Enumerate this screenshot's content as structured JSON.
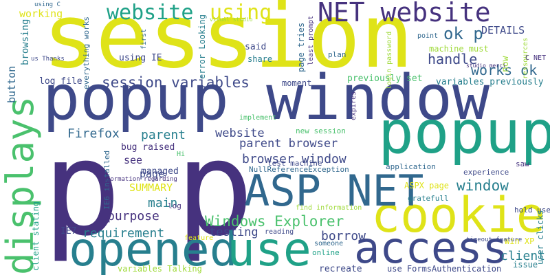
{
  "palette": {
    "dark_purple": "#46327e",
    "indigo": "#3e4989",
    "slate_blue": "#31688e",
    "teal_blue": "#277f8e",
    "teal": "#1fa187",
    "green": "#4ac16d",
    "lime": "#9fda3a",
    "yellow": "#dfe318",
    "bright_yellow": "#e6e419"
  },
  "words": [
    {
      "key": "session",
      "text": "session",
      "color": "#dfe318"
    },
    {
      "key": "p1",
      "text": "p",
      "color": "#46327e"
    },
    {
      "key": "p2",
      "text": "p",
      "color": "#46327e"
    },
    {
      "key": "popup-window",
      "text": "popup window",
      "color": "#3e4989"
    },
    {
      "key": "popup",
      "text": "popup",
      "color": "#1fa187"
    },
    {
      "key": "cookie",
      "text": "cookie",
      "color": "#dfe318"
    },
    {
      "key": "asp-net",
      "text": "ASP NET",
      "color": "#31688e"
    },
    {
      "key": "opened",
      "text": "opened",
      "color": "#277f8e"
    },
    {
      "key": "use",
      "text": "use",
      "color": "#1fa187"
    },
    {
      "key": "access",
      "text": "access",
      "color": "#3e4989"
    },
    {
      "key": "displays",
      "text": "displays",
      "color": "#4ac16d"
    },
    {
      "key": "net-website",
      "text": "NET website",
      "color": "#46327e"
    },
    {
      "key": "website-top",
      "text": "website",
      "color": "#1fa187"
    },
    {
      "key": "using-top",
      "text": "using",
      "color": "#dfe318"
    },
    {
      "key": "ok-p",
      "text": "ok p",
      "color": "#31688e"
    },
    {
      "key": "details",
      "text": "DETAILS",
      "color": "#3e4989"
    },
    {
      "key": "works-ok",
      "text": "works ok",
      "color": "#31688e"
    },
    {
      "key": "handle",
      "text": "handle",
      "color": "#3e4989"
    },
    {
      "key": "session-variables",
      "text": "session variables",
      "color": "#3e4989"
    },
    {
      "key": "firefox",
      "text": "Firefox",
      "color": "#31688e"
    },
    {
      "key": "parent",
      "text": "parent",
      "color": "#277f8e"
    },
    {
      "key": "website-mid",
      "text": "website",
      "color": "#3e4989"
    },
    {
      "key": "parent-browser",
      "text": "parent browser",
      "color": "#3e4989"
    },
    {
      "key": "browser-window",
      "text": "browser window",
      "color": "#3e4989"
    },
    {
      "key": "windows-explorer",
      "text": "Windows Explorer",
      "color": "#4ac16d"
    },
    {
      "key": "window",
      "text": "window",
      "color": "#277f8e"
    },
    {
      "key": "main",
      "text": "main",
      "color": "#277f8e"
    },
    {
      "key": "purpose",
      "text": "purpose",
      "color": "#46327e"
    },
    {
      "key": "requirement",
      "text": "requirement",
      "color": "#277f8e"
    },
    {
      "key": "testing",
      "text": "testing",
      "color": "#3e4989"
    },
    {
      "key": "borrow",
      "text": "borrow",
      "color": "#3e4989"
    },
    {
      "key": "client",
      "text": "client",
      "color": "#277f8e"
    },
    {
      "key": "summary",
      "text": "SUMMARY",
      "color": "#dfe318"
    },
    {
      "key": "page-mid",
      "text": "page",
      "color": "#3e4989"
    },
    {
      "key": "managed",
      "text": "managed",
      "color": "#3e4989"
    },
    {
      "key": "see",
      "text": "see",
      "color": "#46327e"
    },
    {
      "key": "bug-raised",
      "text": "bug raised",
      "color": "#46327e"
    },
    {
      "key": "working",
      "text": "working",
      "color": "#dfe318"
    },
    {
      "key": "button",
      "text": "button",
      "color": "#31688e"
    },
    {
      "key": "browsing",
      "text": "browsing",
      "color": "#277f8e"
    },
    {
      "key": "log-file",
      "text": "log file",
      "color": "#3e4989"
    },
    {
      "key": "using-ie",
      "text": "using IE",
      "color": "#3e4989"
    },
    {
      "key": "said",
      "text": "said",
      "color": "#3e4989"
    },
    {
      "key": "share",
      "text": "share",
      "color": "#277f8e"
    },
    {
      "key": "moment",
      "text": "moment",
      "color": "#3e4989"
    },
    {
      "key": "previously-set",
      "text": "previously set",
      "color": "#4ac16d"
    },
    {
      "key": "variables-previously",
      "text": "variables previously",
      "color": "#277f8e"
    },
    {
      "key": "machine-must",
      "text": "machine must",
      "color": "#9fda3a"
    },
    {
      "key": "now",
      "text": "now",
      "color": "#9fda3a"
    },
    {
      "key": "plan",
      "text": "plan",
      "color": "#31688e"
    },
    {
      "key": "implement",
      "text": "implement",
      "color": "#4ac16d"
    },
    {
      "key": "new-session",
      "text": "new session",
      "color": "#4ac16d"
    },
    {
      "key": "test-machine",
      "text": "test machine",
      "color": "#3e4989"
    },
    {
      "key": "null-ref",
      "text": "NullReferenceException",
      "color": "#31688e"
    },
    {
      "key": "application",
      "text": "application",
      "color": "#31688e"
    },
    {
      "key": "experience",
      "text": "experience",
      "color": "#3e4989"
    },
    {
      "key": "saw",
      "text": "saw",
      "color": "#46327e"
    },
    {
      "key": "aspx-page",
      "text": "ASPX page",
      "color": "#dfe318"
    },
    {
      "key": "gratefull",
      "text": "gratefull",
      "color": "#277f8e"
    },
    {
      "key": "find-information",
      "text": "find information",
      "color": "#9fda3a"
    },
    {
      "key": "reading",
      "text": "reading",
      "color": "#3e4989"
    },
    {
      "key": "someone",
      "text": "someone",
      "color": "#31688e"
    },
    {
      "key": "online",
      "text": "online",
      "color": "#1fa187"
    },
    {
      "key": "recreate",
      "text": "recreate",
      "color": "#3e4989"
    },
    {
      "key": "use-forms-auth",
      "text": "use FormsAuthentication",
      "color": "#3e4989"
    },
    {
      "key": "issue",
      "text": "issue",
      "color": "#277f8e"
    },
    {
      "key": "win-xp",
      "text": "Win XP",
      "color": "#dfe318"
    },
    {
      "key": "hold-use",
      "text": "hold use",
      "color": "#3e4989"
    },
    {
      "key": "timeout-feature",
      "text": "timeout feature",
      "color": "#3e4989"
    },
    {
      "key": "user-clicks",
      "text": "user clicks",
      "color": "#277f8e"
    },
    {
      "key": "ie7",
      "text": "IE7",
      "color": "#3e4989"
    },
    {
      "key": "feature",
      "text": "feature",
      "color": "#dfe318"
    },
    {
      "key": "variables-talking",
      "text": "variables Talking",
      "color": "#9fda3a"
    },
    {
      "key": "client-stating",
      "text": "client stating",
      "color": "#1fa187"
    },
    {
      "key": "ie6-installed",
      "text": "IE6 installed",
      "color": "#31688e"
    },
    {
      "key": "log",
      "text": "log",
      "color": "#46327e"
    },
    {
      "key": "information-regarding",
      "text": "information regarding",
      "color": "#46327e"
    },
    {
      "key": "hi",
      "text": "Hi",
      "color": "#4ac16d"
    },
    {
      "key": "using-c",
      "text": "using C",
      "color": "#31688e"
    },
    {
      "key": "us-thanks",
      "text": "us Thanks",
      "color": "#3e4989"
    },
    {
      "key": "everything-works",
      "text": "everything works",
      "color": "#31688e"
    },
    {
      "key": "first",
      "text": "first",
      "color": "#31688e"
    },
    {
      "key": "error-looking",
      "text": "error Looking",
      "color": "#277f8e"
    },
    {
      "key": "visual-studio",
      "text": "visual studio",
      "color": "#9fda3a"
    },
    {
      "key": "page-tries",
      "text": "page tries",
      "color": "#31688e"
    },
    {
      "key": "least-prompt",
      "text": "least prompt",
      "color": "#46327e"
    },
    {
      "key": "login-password",
      "text": "login password",
      "color": "#9fda3a"
    },
    {
      "key": "expires",
      "text": "expires",
      "color": "#46327e"
    },
    {
      "key": "point",
      "text": "point",
      "color": "#31688e"
    },
    {
      "key": "studio-merci",
      "text": "studio merci",
      "color": "#46327e"
    },
    {
      "key": "ressources",
      "text": "ressources",
      "color": "#9fda3a"
    },
    {
      "key": "c-net",
      "text": "C NET",
      "color": "#46327e"
    }
  ]
}
